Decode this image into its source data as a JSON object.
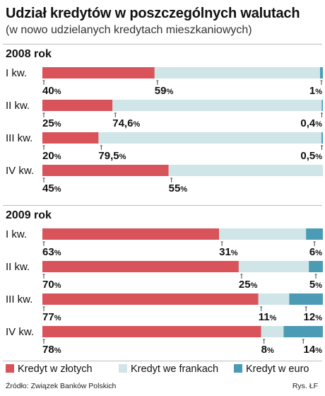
{
  "title": "Udział kredytów w poszczególnych walutach",
  "subtitle": "(w nowo udzielanych kredytach mieszkaniowych)",
  "source": "Źródło: Związek Banków Polskich",
  "credit": "Rys. ŁF",
  "colors": {
    "pln": "#d9535a",
    "chf": "#cfe5e8",
    "eur": "#4b9bb5",
    "rule": "#bdbdbd"
  },
  "chart_data": {
    "type": "bar",
    "stacked": true,
    "orientation": "horizontal",
    "xlim": [
      0,
      100
    ],
    "unit": "%",
    "legend_position": "bottom",
    "series": [
      {
        "name": "Kredyt w złotych",
        "key": "pln"
      },
      {
        "name": "Kredyt we frankach",
        "key": "chf"
      },
      {
        "name": "Kredyt w euro",
        "key": "eur"
      }
    ],
    "groups": [
      {
        "label": "2008 rok",
        "rows": [
          {
            "category": "I kw.",
            "values": [
              40,
              59,
              1
            ],
            "labels": [
              "40",
              "59",
              "1"
            ]
          },
          {
            "category": "II kw.",
            "values": [
              25,
              74.6,
              0.4
            ],
            "labels": [
              "25",
              "74,6",
              "0,4"
            ]
          },
          {
            "category": "III kw.",
            "values": [
              20,
              79.5,
              0.5
            ],
            "labels": [
              "20",
              "79,5",
              "0,5"
            ]
          },
          {
            "category": "IV kw.",
            "values": [
              45,
              55,
              0
            ],
            "labels": [
              "45",
              "55",
              null
            ]
          }
        ]
      },
      {
        "label": "2009 rok",
        "rows": [
          {
            "category": "I kw.",
            "values": [
              63,
              31,
              6
            ],
            "labels": [
              "63",
              "31",
              "6"
            ]
          },
          {
            "category": "II kw.",
            "values": [
              70,
              25,
              5
            ],
            "labels": [
              "70",
              "25",
              "5"
            ]
          },
          {
            "category": "III kw.",
            "values": [
              77,
              11,
              12
            ],
            "labels": [
              "77",
              "11",
              "12"
            ]
          },
          {
            "category": "IV kw.",
            "values": [
              78,
              8,
              14
            ],
            "labels": [
              "78",
              "8",
              "14"
            ]
          }
        ]
      }
    ]
  }
}
